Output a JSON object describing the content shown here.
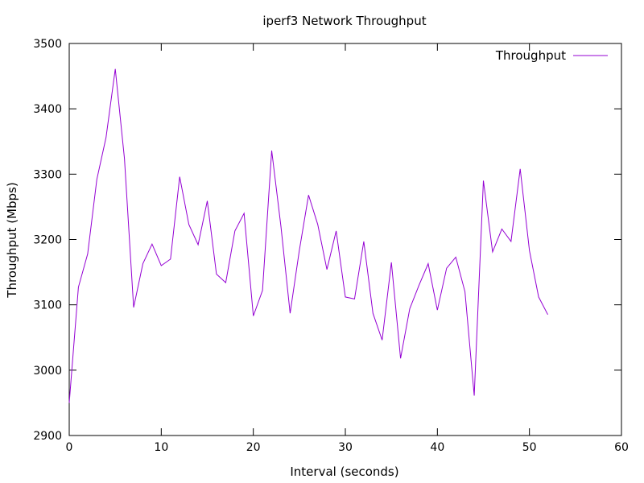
{
  "chart_data": {
    "type": "line",
    "title": "iperf3 Network Throughput",
    "xlabel": "Interval (seconds)",
    "ylabel": "Throughput (Mbps)",
    "xlim": [
      0,
      60
    ],
    "ylim": [
      2900,
      3500
    ],
    "xticks": [
      0,
      10,
      20,
      30,
      40,
      50,
      60
    ],
    "yticks": [
      2900,
      3000,
      3100,
      3200,
      3300,
      3400,
      3500
    ],
    "grid": false,
    "legend_position": "top-right",
    "series": [
      {
        "name": "Throughput",
        "color": "#9400d3",
        "x": [
          0,
          1,
          2,
          3,
          4,
          5,
          6,
          7,
          8,
          9,
          10,
          11,
          12,
          13,
          14,
          15,
          16,
          17,
          18,
          19,
          20,
          21,
          22,
          23,
          24,
          25,
          26,
          27,
          28,
          29,
          30,
          31,
          32,
          33,
          34,
          35,
          36,
          37,
          38,
          39,
          40,
          41,
          42,
          43,
          44,
          45,
          46,
          47,
          48,
          49,
          50,
          51,
          52
        ],
        "y": [
          2950,
          3127,
          3178,
          3292,
          3356,
          3461,
          3324,
          3096,
          3163,
          3193,
          3160,
          3170,
          3296,
          3223,
          3192,
          3259,
          3147,
          3134,
          3213,
          3240,
          3083,
          3122,
          3336,
          3220,
          3087,
          3183,
          3268,
          3223,
          3154,
          3213,
          3112,
          3109,
          3197,
          3087,
          3046,
          3165,
          3018,
          3094,
          3130,
          3163,
          3092,
          3156,
          3173,
          3120,
          2961,
          3290,
          3181,
          3216,
          3197,
          3308,
          3183,
          3112,
          3085
        ]
      }
    ]
  }
}
